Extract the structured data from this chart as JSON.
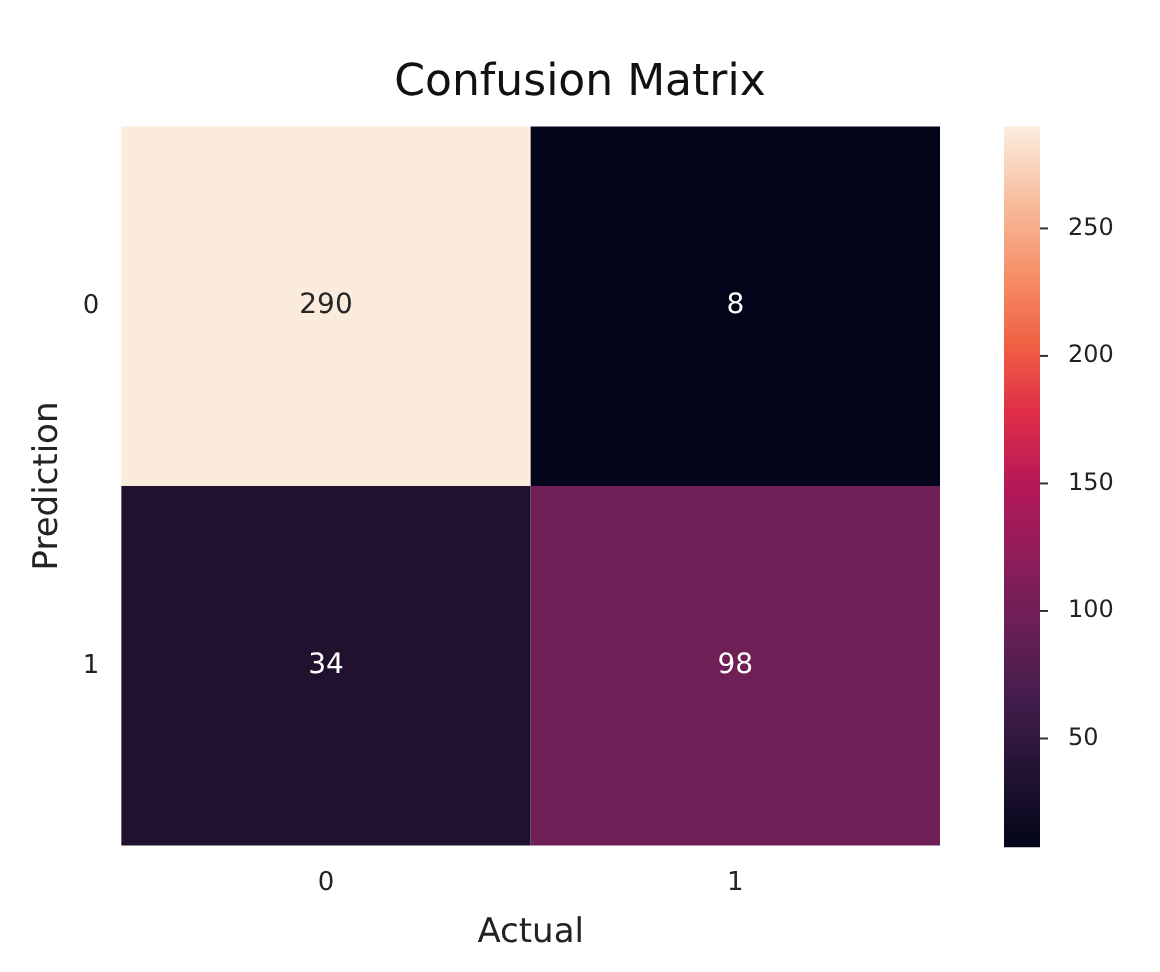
{
  "chart_data": {
    "type": "heatmap",
    "title": "Confusion Matrix",
    "xlabel": "Actual",
    "ylabel": "Prediction",
    "categories": [
      "0",
      "1"
    ],
    "y_categories": [
      "0",
      "1"
    ],
    "cells": [
      [
        290,
        8
      ],
      [
        34,
        98
      ]
    ],
    "clim": [
      8,
      290
    ],
    "cticks": [
      50,
      100,
      150,
      200,
      250
    ],
    "data_labels": true
  }
}
